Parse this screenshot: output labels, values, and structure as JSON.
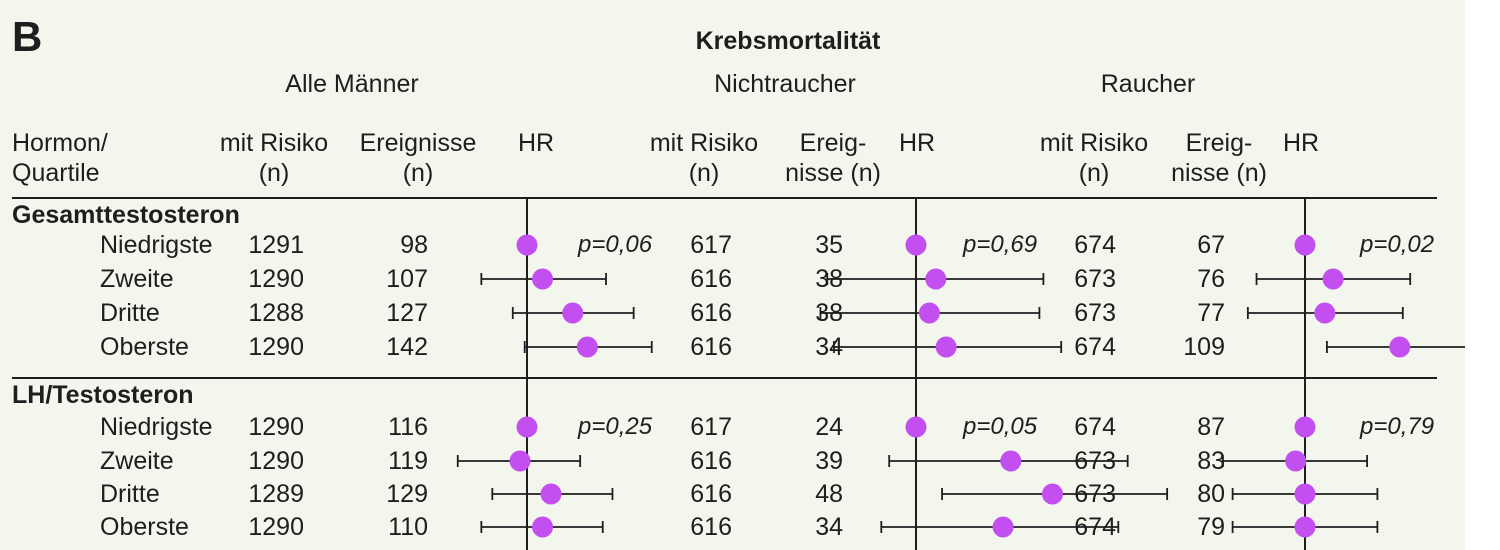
{
  "panel_label": "B",
  "chart_data": {
    "type": "forest",
    "title": "Krebsmortalität",
    "row_label_header": "Hormon/\nQuartile",
    "columns": [
      {
        "name": "Alle Männer",
        "at_risk_header": "mit Risiko\n(n)",
        "events_header": "Ereignisse\n(n)",
        "hr_header": "HR"
      },
      {
        "name": "Nichtraucher",
        "at_risk_header": "mit Risiko\n(n)",
        "events_header": "Ereig-\nnisse (n)",
        "hr_header": "HR"
      },
      {
        "name": "Raucher",
        "at_risk_header": "mit Risiko\n(n)",
        "events_header": "Ereig-\nnisse (n)",
        "hr_header": "HR"
      }
    ],
    "groups": [
      {
        "name": "Gesamttestosteron",
        "p_values": [
          "p=0,06",
          "p=0,69",
          "p=0,02"
        ],
        "rows": [
          {
            "label": "Niedrigste",
            "values": [
              {
                "n": "1291",
                "events": "98",
                "hr": 1.0
              },
              {
                "n": "617",
                "events": "35",
                "hr": 1.0
              },
              {
                "n": "674",
                "events": "67",
                "hr": 1.0
              }
            ]
          },
          {
            "label": "Zweite",
            "values": [
              {
                "n": "1290",
                "events": "107",
                "hr": 1.07,
                "lo": 0.82,
                "hi": 1.41
              },
              {
                "n": "616",
                "events": "38",
                "hr": 1.09,
                "lo": 0.68,
                "hi": 1.74
              },
              {
                "n": "673",
                "events": "76",
                "hr": 1.13,
                "lo": 0.81,
                "hi": 1.58
              }
            ]
          },
          {
            "label": "Dritte",
            "values": [
              {
                "n": "1288",
                "events": "127",
                "hr": 1.22,
                "lo": 0.94,
                "hi": 1.59
              },
              {
                "n": "616",
                "events": "38",
                "hr": 1.06,
                "lo": 0.66,
                "hi": 1.71
              },
              {
                "n": "673",
                "events": "77",
                "hr": 1.09,
                "lo": 0.78,
                "hi": 1.53
              }
            ]
          },
          {
            "label": "Oberste",
            "values": [
              {
                "n": "1290",
                "events": "142",
                "hr": 1.3,
                "lo": 0.99,
                "hi": 1.72
              },
              {
                "n": "616",
                "events": "34",
                "hr": 1.14,
                "lo": 0.7,
                "hi": 1.88
              },
              {
                "n": "674",
                "events": "109",
                "hr": 1.51,
                "lo": 1.1,
                "hi": 2.05
              }
            ]
          }
        ]
      },
      {
        "name": "LH/Testosteron",
        "p_values": [
          "p=0,25",
          "p=0,05",
          "p=0,79"
        ],
        "rows": [
          {
            "label": "Niedrigste",
            "values": [
              {
                "n": "1290",
                "events": "116",
                "hr": 1.0
              },
              {
                "n": "617",
                "events": "24",
                "hr": 1.0
              },
              {
                "n": "674",
                "events": "87",
                "hr": 1.0
              }
            ]
          },
          {
            "label": "Zweite",
            "values": [
              {
                "n": "1290",
                "events": "119",
                "hr": 0.97,
                "lo": 0.74,
                "hi": 1.26
              },
              {
                "n": "616",
                "events": "39",
                "hr": 1.51,
                "lo": 0.89,
                "hi": 2.51
              },
              {
                "n": "673",
                "events": "83",
                "hr": 0.96,
                "lo": 0.7,
                "hi": 1.31
              }
            ]
          },
          {
            "label": "Dritte",
            "values": [
              {
                "n": "1289",
                "events": "129",
                "hr": 1.11,
                "lo": 0.86,
                "hi": 1.45
              },
              {
                "n": "616",
                "events": "48",
                "hr": 1.81,
                "lo": 1.12,
                "hi": 2.98
              },
              {
                "n": "673",
                "events": "80",
                "hr": 1.0,
                "lo": 0.73,
                "hi": 1.37
              }
            ]
          },
          {
            "label": "Oberste",
            "values": [
              {
                "n": "1290",
                "events": "110",
                "hr": 1.07,
                "lo": 0.82,
                "hi": 1.39
              },
              {
                "n": "616",
                "events": "34",
                "hr": 1.46,
                "lo": 0.86,
                "hi": 2.41
              },
              {
                "n": "674",
                "events": "79",
                "hr": 1.0,
                "lo": 0.73,
                "hi": 1.37
              }
            ]
          }
        ]
      }
    ],
    "x_scale": "log",
    "reference_hr": 1.0,
    "colors": {
      "point": "#c44ff0",
      "line": "#1e1e1e",
      "background": "#f3f6ec"
    }
  }
}
